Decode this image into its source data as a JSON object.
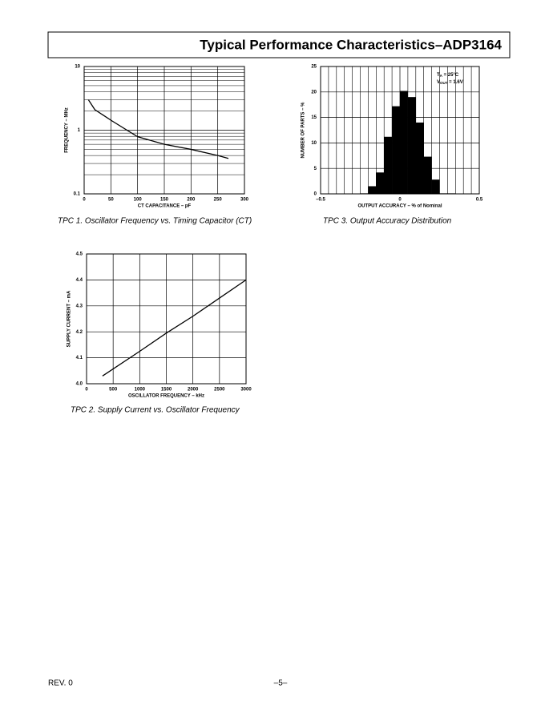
{
  "header": {
    "title": "Typical Performance Characteristics–ADP3164"
  },
  "chart_data": [
    {
      "type": "line",
      "caption": "TPC 1. Oscillator Frequency vs. Timing Capacitor (CT)",
      "x_label": "CT CAPACITANCE – pF",
      "y_label": "FREQUENCY – MHz",
      "x": [
        8,
        20,
        52,
        100,
        150,
        200,
        250,
        270
      ],
      "values": [
        3.0,
        2.1,
        1.4,
        0.79,
        0.6,
        0.5,
        0.4,
        0.36
      ],
      "color": "#000000",
      "log_y": true,
      "grid": true,
      "xlim": [
        0,
        300
      ],
      "xticks": [
        0,
        50,
        100,
        150,
        200,
        250,
        300
      ],
      "ylim": [
        0.1,
        10
      ],
      "yticks": [
        0.1,
        1,
        10
      ]
    },
    {
      "type": "line",
      "caption": "TPC 2.  Supply Current vs. Oscillator Frequency",
      "x_label": "OSCILLATOR FREQUENCY – kHz",
      "y_label": "SUPPLY CURRENT – mA",
      "x": [
        300,
        1000,
        1500,
        2000,
        2500,
        3000
      ],
      "values": [
        4.03,
        4.125,
        4.195,
        4.26,
        4.33,
        4.4
      ],
      "color": "#000000",
      "grid": true,
      "xlim": [
        0,
        3000
      ],
      "xticks": [
        0,
        500,
        1000,
        1500,
        2000,
        2500,
        3000
      ],
      "ylim": [
        4,
        4.5
      ],
      "yticks": [
        {
          "value": 4,
          "label": "4.0"
        },
        4.1,
        4.2,
        4.3,
        4.4,
        4.5
      ]
    },
    {
      "type": "histogram",
      "caption": "TPC 3.  Output Accuracy Distribution",
      "x_label": "OUTPUT ACCURACY – % of Nominal",
      "y_label": "NUMBER OF PARTS – %",
      "bins": [
        -0.25,
        -0.2,
        -0.15,
        -0.1,
        -0.05,
        0,
        0.05,
        0.1,
        0.15,
        0.2,
        0.25,
        0.3,
        0.35
      ],
      "values": [
        0.1,
        1.5,
        4.2,
        11.2,
        17.2,
        20.2,
        19,
        14,
        7.3,
        2.8,
        0.1,
        0.1
      ],
      "color": "#000000",
      "grid": true,
      "x_minor_grid": true,
      "annotations": [
        {
          "main": "T",
          "sub": "A",
          "tail": " = 25°C"
        },
        {
          "main": "V",
          "sub": "OUT",
          "tail": " = 1.6V"
        }
      ],
      "xlim": [
        -0.5,
        0.5
      ],
      "xticks": [
        {
          "value": -0.5,
          "label": "–0.5"
        },
        0,
        0.5
      ],
      "ylim": [
        0,
        25
      ],
      "yticks": [
        0,
        5,
        10,
        15,
        20,
        25
      ]
    }
  ],
  "footer": {
    "revision": "REV. 0",
    "page": "–5–"
  }
}
